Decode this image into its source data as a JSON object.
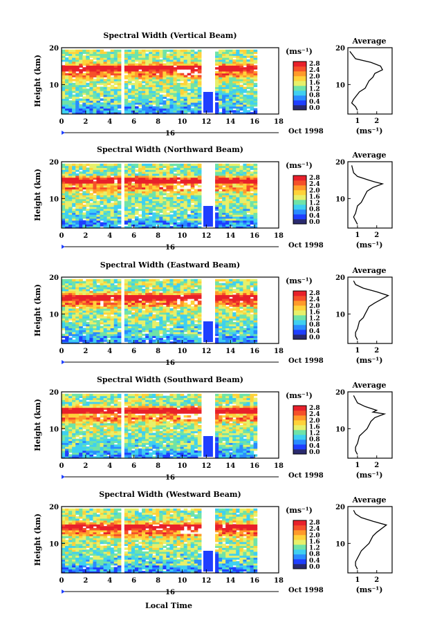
{
  "figure": {
    "common": {
      "ylabel": "Height (km)",
      "xticks": [
        "0",
        "2",
        "4",
        "6",
        "8",
        "10",
        "12",
        "14",
        "16",
        "18"
      ],
      "yticks": [
        "10",
        "20"
      ],
      "day_label": "16",
      "date_label": "Oct 1998",
      "x_axis_label": "Local Time",
      "colorbar_unit": "(ms⁻¹)",
      "colorbar_ticks": [
        "0.0",
        "0.4",
        "0.8",
        "1.2",
        "1.6",
        "2.0",
        "2.4",
        "2.8"
      ],
      "avg_title": "Average",
      "avg_ylabel": "(ms⁻¹)",
      "avg_yticks": [
        "10",
        "20"
      ],
      "colors": {
        "scale": [
          "#2a2a6e",
          "#1f3fff",
          "#2a8cff",
          "#3fd0f0",
          "#6fe3a8",
          "#e7f06a",
          "#ffd23a",
          "#ff9a2a",
          "#f5502a",
          "#e8202a"
        ]
      }
    },
    "panels": [
      {
        "title": "Spectral Width (Vertical Beam)",
        "avg_xticks": [
          "1",
          "2"
        ]
      },
      {
        "title": "Spectral Width (Northward Beam)",
        "avg_xticks": [
          "1",
          "2"
        ]
      },
      {
        "title": "Spectral Width (Eastward Beam)",
        "avg_xticks": [
          "1",
          "2"
        ]
      },
      {
        "title": "Spectral Width (Southward Beam)",
        "avg_xticks": [
          "1",
          "2"
        ]
      },
      {
        "title": "Spectral Width (Westward Beam)",
        "avg_xticks": [
          "1",
          "2"
        ]
      }
    ]
  },
  "chart_data": [
    {
      "type": "heatmap",
      "title": "Spectral Width (Vertical Beam)",
      "xlabel": "Local Time",
      "ylabel": "Height (km)",
      "x_range": [
        0,
        18
      ],
      "y_range": [
        2,
        20
      ],
      "color_range": [
        0.0,
        2.8
      ],
      "units": "ms⁻¹",
      "data_gaps_hours": [
        [
          4.9,
          5.2
        ],
        [
          11.7,
          12.6
        ],
        [
          16.2,
          18
        ]
      ]
    },
    {
      "type": "line",
      "title": "Average",
      "xlabel": "(ms⁻¹)",
      "ylabel": "Height (km)",
      "y_range": [
        2,
        20
      ],
      "x": [
        1.0,
        0.9,
        0.7,
        0.8,
        1.1,
        1.4,
        1.6,
        1.8,
        1.9,
        2.3,
        2.2,
        1.7,
        0.9,
        0.6
      ],
      "y": [
        3,
        4,
        5,
        6,
        8,
        9,
        11,
        12,
        13,
        14,
        15,
        16,
        17,
        19
      ]
    },
    {
      "type": "heatmap",
      "title": "Spectral Width (Northward Beam)",
      "xlabel": "Local Time",
      "ylabel": "Height (km)",
      "x_range": [
        0,
        18
      ],
      "y_range": [
        2,
        20
      ],
      "color_range": [
        0.0,
        2.8
      ],
      "units": "ms⁻¹",
      "data_gaps_hours": [
        [
          4.9,
          5.2
        ],
        [
          11.7,
          12.6
        ],
        [
          16.2,
          18
        ]
      ]
    },
    {
      "type": "line",
      "title": "Average",
      "xlabel": "(ms⁻¹)",
      "ylabel": "Height (km)",
      "y_range": [
        2,
        20
      ],
      "x": [
        1.0,
        0.9,
        0.8,
        0.9,
        1.0,
        1.2,
        1.3,
        1.5,
        1.8,
        2.3,
        1.9,
        1.6,
        1.0,
        0.8,
        0.7
      ],
      "y": [
        3,
        4,
        5,
        6,
        8,
        9,
        10,
        12,
        13,
        14,
        14.5,
        15,
        16,
        17,
        19
      ]
    },
    {
      "type": "heatmap",
      "title": "Spectral Width (Eastward Beam)",
      "xlabel": "Local Time",
      "ylabel": "Height (km)",
      "x_range": [
        0,
        18
      ],
      "y_range": [
        2,
        20
      ],
      "color_range": [
        0.0,
        2.8
      ],
      "units": "ms⁻¹",
      "data_gaps_hours": [
        [
          4.9,
          5.2
        ],
        [
          11.7,
          12.6
        ],
        [
          16.2,
          18
        ]
      ]
    },
    {
      "type": "line",
      "title": "Average",
      "xlabel": "(ms⁻¹)",
      "ylabel": "Height (km)",
      "y_range": [
        2,
        20
      ],
      "x": [
        1.0,
        0.9,
        0.9,
        1.0,
        1.1,
        1.3,
        1.4,
        1.6,
        1.9,
        2.6,
        2.0,
        1.3,
        0.9,
        0.8
      ],
      "y": [
        3,
        4,
        5,
        6,
        8,
        9,
        10,
        12,
        13,
        15,
        16,
        17,
        18,
        19
      ]
    },
    {
      "type": "heatmap",
      "title": "Spectral Width (Southward Beam)",
      "xlabel": "Local Time",
      "ylabel": "Height (km)",
      "x_range": [
        0,
        18
      ],
      "y_range": [
        2,
        20
      ],
      "color_range": [
        0.0,
        2.8
      ],
      "units": "ms⁻¹",
      "data_gaps_hours": [
        [
          4.9,
          5.2
        ],
        [
          11.7,
          12.6
        ],
        [
          16.2,
          18
        ]
      ]
    },
    {
      "type": "line",
      "title": "Average",
      "xlabel": "(ms⁻¹)",
      "ylabel": "Height (km)",
      "y_range": [
        2,
        20
      ],
      "x": [
        1.0,
        0.9,
        0.9,
        1.0,
        1.1,
        1.3,
        1.5,
        1.7,
        1.9,
        2.4,
        1.8,
        2.0,
        1.4,
        1.0,
        0.8
      ],
      "y": [
        3,
        4,
        5,
        6,
        8,
        9,
        10,
        12,
        13,
        14,
        14.5,
        15,
        16,
        17,
        19
      ]
    },
    {
      "type": "heatmap",
      "title": "Spectral Width (Westward Beam)",
      "xlabel": "Local Time",
      "ylabel": "Height (km)",
      "x_range": [
        0,
        18
      ],
      "y_range": [
        2,
        20
      ],
      "color_range": [
        0.0,
        2.8
      ],
      "units": "ms⁻¹",
      "data_gaps_hours": [
        [
          4.9,
          5.2
        ],
        [
          11.7,
          12.6
        ],
        [
          16.2,
          18
        ]
      ]
    },
    {
      "type": "line",
      "title": "Average",
      "xlabel": "(ms⁻¹)",
      "ylabel": "Height (km)",
      "y_range": [
        2,
        20
      ],
      "x": [
        1.0,
        0.9,
        0.9,
        1.0,
        1.2,
        1.4,
        1.6,
        1.8,
        2.0,
        2.5,
        1.8,
        1.2,
        0.9,
        0.8
      ],
      "y": [
        3,
        4,
        5,
        6,
        8,
        9,
        10,
        12,
        13,
        15,
        16,
        17,
        18,
        19
      ]
    }
  ]
}
